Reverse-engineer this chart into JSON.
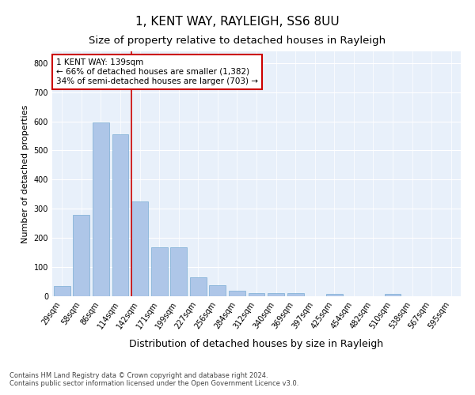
{
  "title": "1, KENT WAY, RAYLEIGH, SS6 8UU",
  "subtitle": "Size of property relative to detached houses in Rayleigh",
  "xlabel": "Distribution of detached houses by size in Rayleigh",
  "ylabel": "Number of detached properties",
  "categories": [
    "29sqm",
    "58sqm",
    "86sqm",
    "114sqm",
    "142sqm",
    "171sqm",
    "199sqm",
    "227sqm",
    "256sqm",
    "284sqm",
    "312sqm",
    "340sqm",
    "369sqm",
    "397sqm",
    "425sqm",
    "454sqm",
    "482sqm",
    "510sqm",
    "538sqm",
    "567sqm",
    "595sqm"
  ],
  "values": [
    35,
    280,
    595,
    555,
    325,
    168,
    168,
    65,
    37,
    20,
    10,
    10,
    10,
    0,
    7,
    0,
    0,
    8,
    0,
    0,
    0
  ],
  "bar_color": "#aec6e8",
  "bar_edge_color": "#7aadd4",
  "vline_x_idx": 4,
  "vline_color": "#cc0000",
  "annotation_text": "1 KENT WAY: 139sqm\n← 66% of detached houses are smaller (1,382)\n34% of semi-detached houses are larger (703) →",
  "annotation_box_color": "#ffffff",
  "annotation_box_edge": "#cc0000",
  "ylim": [
    0,
    840
  ],
  "yticks": [
    0,
    100,
    200,
    300,
    400,
    500,
    600,
    700,
    800
  ],
  "background_color": "#e8f0fa",
  "grid_color": "#ffffff",
  "footer": "Contains HM Land Registry data © Crown copyright and database right 2024.\nContains public sector information licensed under the Open Government Licence v3.0.",
  "title_fontsize": 11,
  "subtitle_fontsize": 9.5,
  "xlabel_fontsize": 9,
  "ylabel_fontsize": 8,
  "tick_fontsize": 7,
  "annotation_fontsize": 7.5
}
